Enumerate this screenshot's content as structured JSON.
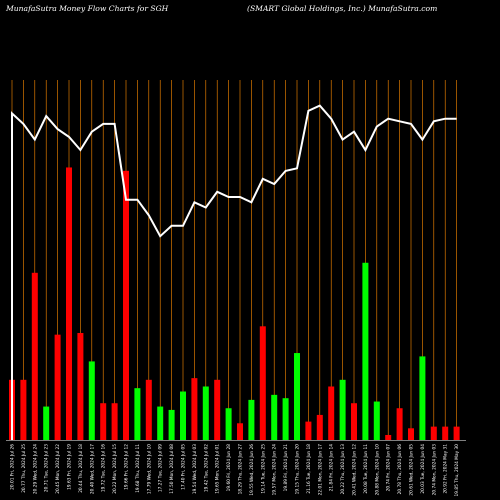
{
  "header": {
    "left_title": "MunafaSutra  Money Flow  Charts for SGH",
    "right_title": "(SMART Global Holdings,  Inc.) MunafaSutra.com"
  },
  "colors": {
    "background": "#000000",
    "up_bar": "#00ff00",
    "down_bar": "#ff0000",
    "grid": "#ff8c00",
    "line": "#ffffff"
  },
  "chart_data": {
    "type": "bar",
    "title": "MunafaSutra  Money Flow  Charts for SGH",
    "subtitle": "(SMART Global Holdings,  Inc.) MunafaSutra.com",
    "categories": [
      "20.01 Fri, 2024 Jul 26",
      "20.77 Thu, 2024 Jul 25",
      "20.29 Wed, 2024 Jul 24",
      "20.71 Tue, 2024 Jul 23",
      "20.45 Mon, 2024 Jul 22",
      "19.63 Fri, 2024 Jul 19",
      "20.44 Thu, 2024 Jul 18",
      "20.40 Wed, 2024 Jul 17",
      "19.72 Tue, 2024 Jul 16",
      "20.22 Mon, 2024 Jul 15",
      "19.66 Fri, 2024 Jul 12",
      "19.68 Thu, 2024 Jul 11",
      "17.79 Wed, 2024 Jul 10",
      "17.27 Tue, 2024 Jul 09",
      "17.50 Mon, 2024 Jul 08",
      "17.40 Fri, 2024 Jul 05",
      "19.54 Wed, 2024 Jul 03",
      "19.42 Tue, 2024 Jul 02",
      "19.65 Mon, 2024 Jul 01",
      "19.60 Fri, 2024 Jun 28",
      "18.29 Thu, 2024 Jun 27",
      "19.55 Wed, 2024 Jun 26",
      "19.14 Tue, 2024 Jun 25",
      "19.57 Mon, 2024 Jun 24",
      "19.89 Fri, 2024 Jun 21",
      "19.15 Thu, 2024 Jun 20",
      "21.16 Tue, 2024 Jun 18",
      "22.01 Mon, 2024 Jun 17",
      "21.84 Fri, 2024 Jun 14",
      "20.22 Thu, 2024 Jun 13",
      "20.41 Wed, 2024 Jun 12",
      "20.08 Tue, 2024 Jun 11",
      "20.88 Mon, 2024 Jun 10",
      "20.74 Fri, 2024 Jun 07",
      "20.78 Thu, 2024 Jun 06",
      "20.61 Wed, 2024 Jun 05",
      "20.03 Tue, 2024 Jun 04",
      "20.74 Mon, 2024 Jun 03",
      "20.92 Fri, 2024 May 31",
      "19.85 Thu, 2024 May 30"
    ],
    "money_flow_volume": [
      36,
      36,
      100,
      20,
      63,
      163,
      64,
      47,
      22,
      22,
      161,
      31,
      36,
      20,
      18,
      29,
      37,
      32,
      36,
      19,
      10,
      24,
      68,
      27,
      25,
      52,
      11,
      15,
      32,
      36,
      22,
      106,
      23,
      3,
      19,
      7,
      50,
      8,
      8,
      8
    ],
    "series": [
      {
        "name": "money_flow_up",
        "color": "#00ff00",
        "values": [
          null,
          null,
          null,
          20,
          null,
          null,
          null,
          47,
          null,
          null,
          null,
          31,
          null,
          20,
          18,
          29,
          null,
          32,
          null,
          19,
          null,
          24,
          null,
          27,
          25,
          52,
          null,
          null,
          null,
          36,
          null,
          106,
          23,
          null,
          null,
          null,
          50,
          null,
          null,
          null
        ]
      },
      {
        "name": "money_flow_down",
        "color": "#ff0000",
        "values": [
          36,
          36,
          100,
          null,
          63,
          163,
          64,
          null,
          22,
          22,
          161,
          null,
          36,
          null,
          null,
          null,
          37,
          null,
          36,
          null,
          10,
          null,
          68,
          null,
          null,
          null,
          11,
          15,
          32,
          null,
          22,
          null,
          null,
          3,
          19,
          7,
          null,
          8,
          8,
          8
        ]
      }
    ],
    "price_line": [
      22.5,
      22.1,
      21.5,
      22.4,
      21.9,
      21.6,
      21.1,
      21.8,
      22.1,
      22.1,
      19.2,
      19.2,
      18.6,
      17.8,
      18.2,
      18.2,
      19.1,
      18.9,
      19.5,
      19.3,
      19.3,
      19.1,
      20.0,
      19.8,
      20.3,
      20.4,
      22.6,
      22.8,
      22.3,
      21.5,
      21.8,
      21.1,
      22.0,
      22.3,
      22.2,
      22.1,
      21.5,
      22.2,
      22.3,
      22.3
    ],
    "x_tick_labels": [
      "20.01 Fri, 2024 Jul 26",
      "20.77 Thu, 2024 Jul 25",
      "20.29 Wed, 2024 Jul 24",
      "20.71 Tue, 2024 Jul 23",
      "20.45 Mon, 2024 Jul 22",
      "19.63 Fri, 2024 Jul 19",
      "20.44 Thu, 2024 Jul 18",
      "20.40 Wed, 2024 Jul 17",
      "19.72 Tue, 2024 Jul 16",
      "20.22 Mon, 2024 Jul 15",
      "19.66 Fri, 2024 Jul 12",
      "19.68 Thu, 2024 Jul 11",
      "17.79 Wed, 2024 Jul 10",
      "17.27 Tue, 2024 Jul 09",
      "17.50 Mon, 2024 Jul 08",
      "17.40 Fri, 2024 Jul 05",
      "19.54 Wed, 2024 Jul 03",
      "19.42 Tue, 2024 Jul 02",
      "19.65 Mon, 2024 Jul 01",
      "19.60 Fri, 2024 Jun 28",
      "18.29 Thu, 2024 Jun 27",
      "19.55 Wed, 2024 Jun 26",
      "19.14 Tue, 2024 Jun 25",
      "19.57 Mon, 2024 Jun 24",
      "19.89 Fri, 2024 Jun 21",
      "19.15 Thu, 2024 Jun 20",
      "21.16 Tue, 2024 Jun 18",
      "22.01 Mon, 2024 Jun 17",
      "21.84 Fri, 2024 Jun 14",
      "20.22 Thu, 2024 Jun 13",
      "20.41 Wed, 2024 Jun 12",
      "20.08 Tue, 2024 Jun 11",
      "20.88 Mon, 2024 Jun 10",
      "20.74 Fri, 2024 Jun 07",
      "20.78 Thu, 2024 Jun 06",
      "20.61 Wed, 2024 Jun 05",
      "20.03 Tue, 2024 Jun 04",
      "20.74 Mon, 2024 Jun 03",
      "20.92 Fri, 2024 May 31",
      "19.85 Thu, 2024 May 30"
    ],
    "ylim": [
      0,
      250
    ],
    "price_ylim": [
      10,
      26
    ],
    "grid": "vertical",
    "xlabel": "",
    "ylabel": ""
  }
}
